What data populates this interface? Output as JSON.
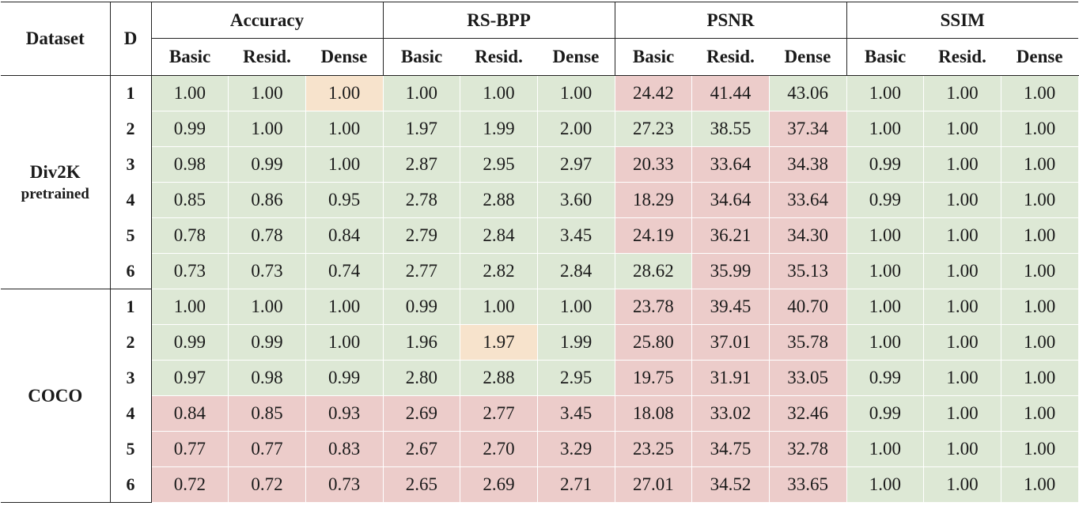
{
  "table": {
    "col_dataset": "Dataset",
    "col_d": "D",
    "groups": [
      "Accuracy",
      "RS-BPP",
      "PSNR",
      "SSIM"
    ],
    "subcols": [
      "Basic",
      "Resid.",
      "Dense"
    ],
    "datasets": [
      {
        "name": "Div2K",
        "sub": "pretrained",
        "rows": [
          {
            "d": "1",
            "values": [
              "1.00",
              "1.00",
              "1.00",
              "1.00",
              "1.00",
              "1.00",
              "24.42",
              "41.44",
              "43.06",
              "1.00",
              "1.00",
              "1.00"
            ],
            "colors": [
              "g",
              "g",
              "o",
              "g",
              "g",
              "g",
              "r",
              "r",
              "g",
              "g",
              "g",
              "g"
            ]
          },
          {
            "d": "2",
            "values": [
              "0.99",
              "1.00",
              "1.00",
              "1.97",
              "1.99",
              "2.00",
              "27.23",
              "38.55",
              "37.34",
              "1.00",
              "1.00",
              "1.00"
            ],
            "colors": [
              "g",
              "g",
              "g",
              "g",
              "g",
              "g",
              "g",
              "g",
              "r",
              "g",
              "g",
              "g"
            ]
          },
          {
            "d": "3",
            "values": [
              "0.98",
              "0.99",
              "1.00",
              "2.87",
              "2.95",
              "2.97",
              "20.33",
              "33.64",
              "34.38",
              "0.99",
              "1.00",
              "1.00"
            ],
            "colors": [
              "g",
              "g",
              "g",
              "g",
              "g",
              "g",
              "r",
              "r",
              "r",
              "g",
              "g",
              "g"
            ]
          },
          {
            "d": "4",
            "values": [
              "0.85",
              "0.86",
              "0.95",
              "2.78",
              "2.88",
              "3.60",
              "18.29",
              "34.64",
              "33.64",
              "0.99",
              "1.00",
              "1.00"
            ],
            "colors": [
              "g",
              "g",
              "g",
              "g",
              "g",
              "g",
              "r",
              "r",
              "r",
              "g",
              "g",
              "g"
            ]
          },
          {
            "d": "5",
            "values": [
              "0.78",
              "0.78",
              "0.84",
              "2.79",
              "2.84",
              "3.45",
              "24.19",
              "36.21",
              "34.30",
              "1.00",
              "1.00",
              "1.00"
            ],
            "colors": [
              "g",
              "g",
              "g",
              "g",
              "g",
              "g",
              "r",
              "r",
              "r",
              "g",
              "g",
              "g"
            ]
          },
          {
            "d": "6",
            "values": [
              "0.73",
              "0.73",
              "0.74",
              "2.77",
              "2.82",
              "2.84",
              "28.62",
              "35.99",
              "35.13",
              "1.00",
              "1.00",
              "1.00"
            ],
            "colors": [
              "g",
              "g",
              "g",
              "g",
              "g",
              "g",
              "g",
              "r",
              "r",
              "g",
              "g",
              "g"
            ]
          }
        ]
      },
      {
        "name": "COCO",
        "sub": "",
        "rows": [
          {
            "d": "1",
            "values": [
              "1.00",
              "1.00",
              "1.00",
              "0.99",
              "1.00",
              "1.00",
              "23.78",
              "39.45",
              "40.70",
              "1.00",
              "1.00",
              "1.00"
            ],
            "colors": [
              "g",
              "g",
              "g",
              "g",
              "g",
              "g",
              "r",
              "r",
              "r",
              "g",
              "g",
              "g"
            ]
          },
          {
            "d": "2",
            "values": [
              "0.99",
              "0.99",
              "1.00",
              "1.96",
              "1.97",
              "1.99",
              "25.80",
              "37.01",
              "35.78",
              "1.00",
              "1.00",
              "1.00"
            ],
            "colors": [
              "g",
              "g",
              "g",
              "g",
              "o",
              "g",
              "r",
              "r",
              "r",
              "g",
              "g",
              "g"
            ]
          },
          {
            "d": "3",
            "values": [
              "0.97",
              "0.98",
              "0.99",
              "2.80",
              "2.88",
              "2.95",
              "19.75",
              "31.91",
              "33.05",
              "0.99",
              "1.00",
              "1.00"
            ],
            "colors": [
              "g",
              "g",
              "g",
              "g",
              "g",
              "g",
              "r",
              "r",
              "r",
              "g",
              "g",
              "g"
            ]
          },
          {
            "d": "4",
            "values": [
              "0.84",
              "0.85",
              "0.93",
              "2.69",
              "2.77",
              "3.45",
              "18.08",
              "33.02",
              "32.46",
              "0.99",
              "1.00",
              "1.00"
            ],
            "colors": [
              "r",
              "r",
              "r",
              "r",
              "r",
              "r",
              "r",
              "r",
              "r",
              "g",
              "g",
              "g"
            ]
          },
          {
            "d": "5",
            "values": [
              "0.77",
              "0.77",
              "0.83",
              "2.67",
              "2.70",
              "3.29",
              "23.25",
              "34.75",
              "32.78",
              "1.00",
              "1.00",
              "1.00"
            ],
            "colors": [
              "r",
              "r",
              "r",
              "r",
              "r",
              "r",
              "r",
              "r",
              "r",
              "g",
              "g",
              "g"
            ]
          },
          {
            "d": "6",
            "values": [
              "0.72",
              "0.72",
              "0.73",
              "2.65",
              "2.69",
              "2.71",
              "27.01",
              "34.52",
              "33.65",
              "1.00",
              "1.00",
              "1.00"
            ],
            "colors": [
              "r",
              "r",
              "r",
              "r",
              "r",
              "r",
              "r",
              "r",
              "r",
              "g",
              "g",
              "g"
            ]
          }
        ]
      }
    ],
    "colors": {
      "g": "#dde8d5",
      "r": "#ecccca",
      "o": "#f7e3cc"
    }
  }
}
